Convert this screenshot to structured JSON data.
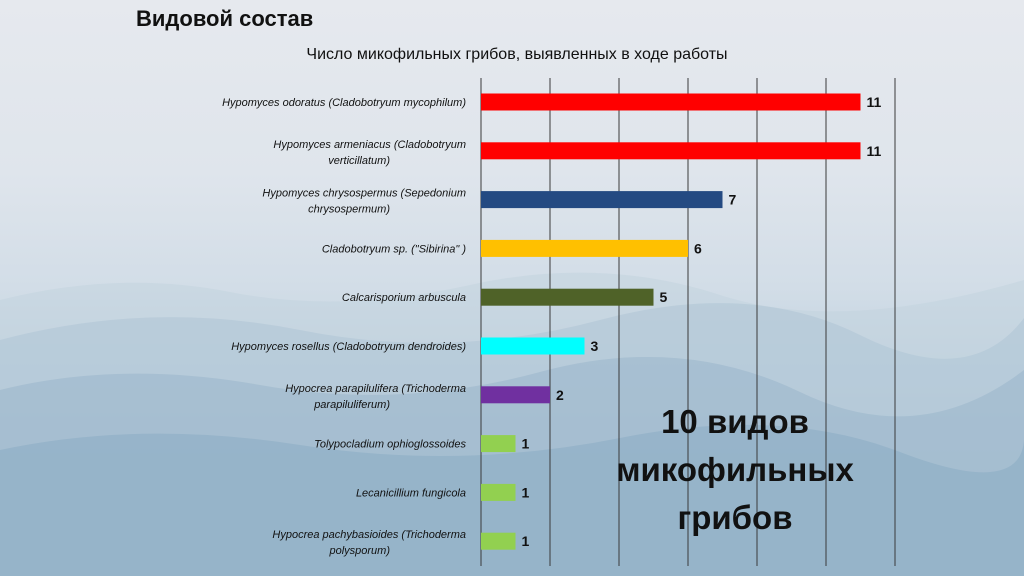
{
  "slide": {
    "title": "Видовой состав"
  },
  "overlay": {
    "lines": [
      "10 видов",
      "микофильных",
      "грибов"
    ]
  },
  "colors": {
    "red": "#ff0000",
    "navy": "#244a82",
    "amber": "#ffc000",
    "olive": "#4f6228",
    "cyan": "#00ffff",
    "purple": "#7030a0",
    "lightgreen": "#92d050"
  },
  "chart_data": {
    "type": "bar",
    "orientation": "horizontal",
    "title": "Число микофильных грибов, выявленных в ходе работы",
    "xlabel": "",
    "ylabel": "",
    "xlim": [
      0,
      12
    ],
    "grid": true,
    "legend": "none",
    "categories": [
      "Hypomyces odoratus (Cladobotryum mycophilum)",
      "Hypomyces armeniacus (Cladobotryum verticillatum)",
      "Hypomyces chrysospermus (Sepedonium chrysospermum)",
      "Cladobotryum sp. (\"Sibirina\" )",
      "Calcarisporium arbuscula",
      "Hypomyces rosellus (Cladobotryum dendroides)",
      "Hypocrea parapilulifera (Trichoderma parapiluliferum)",
      "Tolypocladium ophioglossoides",
      "Lecanicillium fungicola",
      "Hypocrea pachybasioides (Trichoderma polysporum)"
    ],
    "values": [
      11,
      11,
      7,
      6,
      5,
      3,
      2,
      1,
      1,
      1
    ],
    "bar_colors": [
      "#ff0000",
      "#ff0000",
      "#244a82",
      "#ffc000",
      "#4f6228",
      "#00ffff",
      "#7030a0",
      "#92d050",
      "#92d050",
      "#92d050"
    ]
  }
}
